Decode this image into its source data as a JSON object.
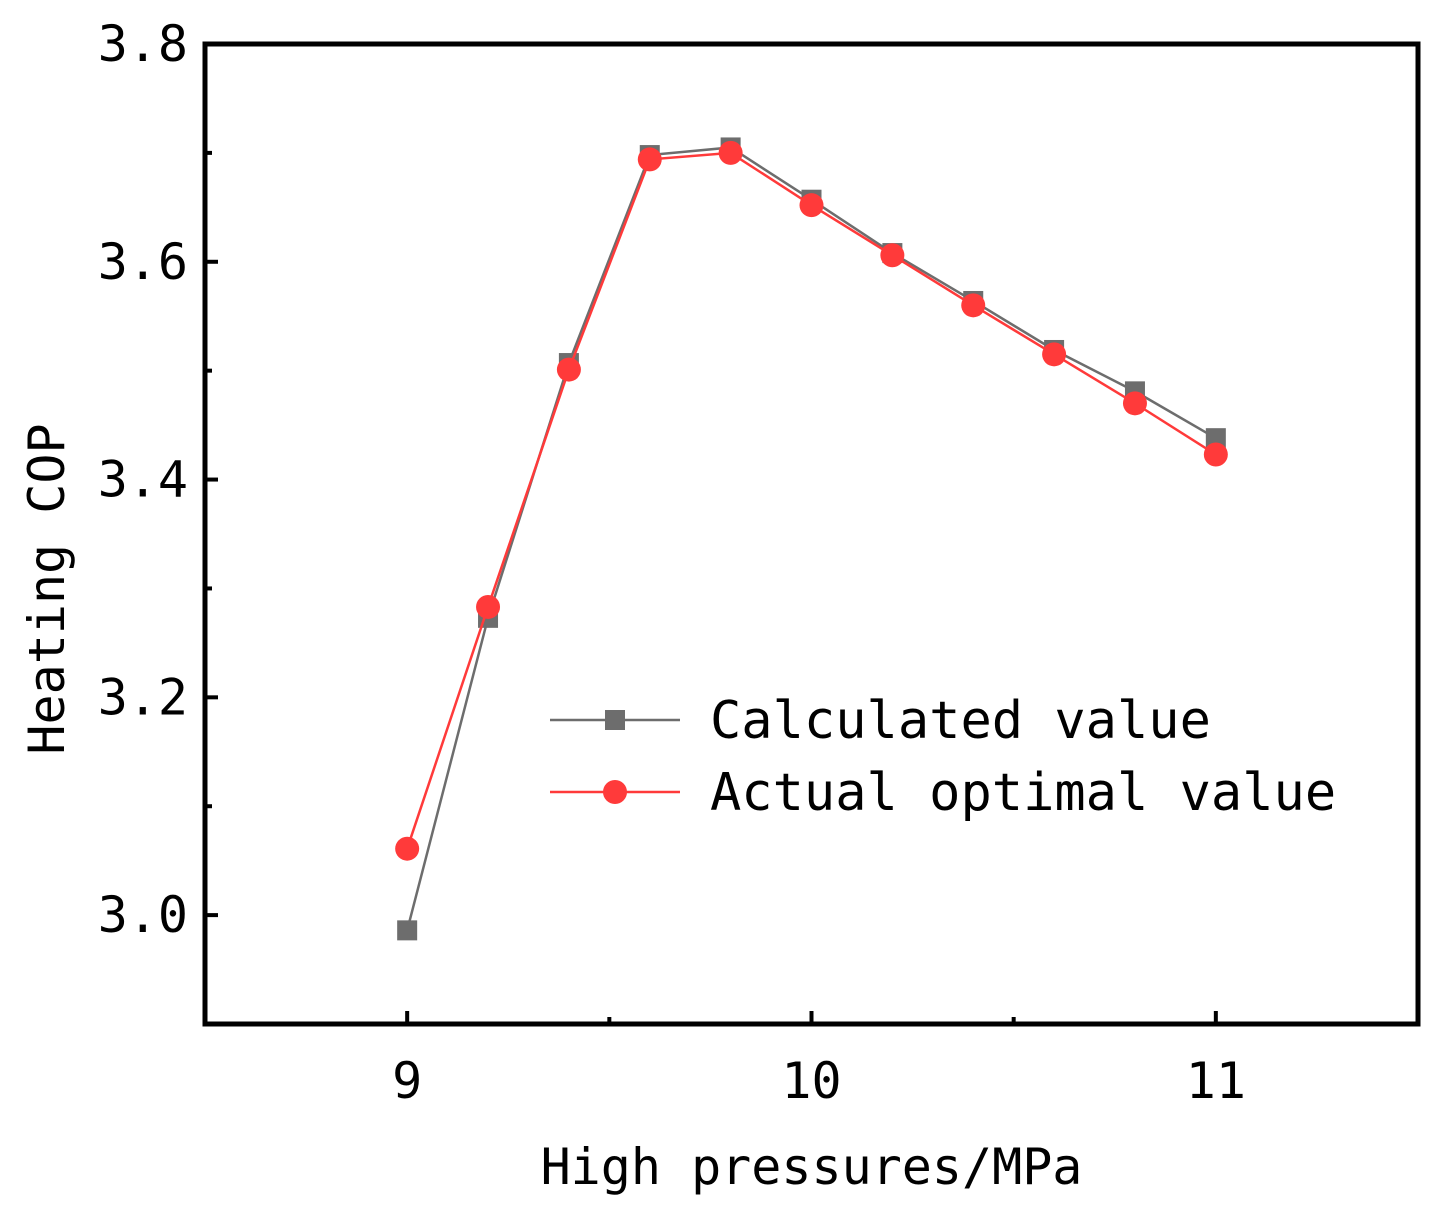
{
  "chart_data": {
    "type": "line",
    "title": "",
    "xlabel": "High pressures/MPa",
    "ylabel": "Heating COP",
    "xlim": [
      8.5,
      11.5
    ],
    "ylim": [
      2.9,
      3.8
    ],
    "xticks": [
      9,
      10,
      11
    ],
    "xtick_labels": [
      "9",
      "10",
      "11"
    ],
    "x_minor_ticks": [
      9.5,
      10.5
    ],
    "yticks": [
      3.0,
      3.2,
      3.4,
      3.6,
      3.8
    ],
    "ytick_labels": [
      "3.0",
      "3.2",
      "3.4",
      "3.6",
      "3.8"
    ],
    "y_minor_ticks": [
      3.1,
      3.3,
      3.5,
      3.7
    ],
    "grid": false,
    "legend_position": "center-right",
    "x": [
      9.0,
      9.2,
      9.4,
      9.6,
      9.8,
      10.0,
      10.2,
      10.4,
      10.6,
      10.8,
      11.0
    ],
    "series": [
      {
        "name": "Calculated value",
        "marker": "square",
        "color": "#6d6d6d",
        "values": [
          2.986,
          3.273,
          3.507,
          3.698,
          3.705,
          3.657,
          3.608,
          3.564,
          3.519,
          3.481,
          3.438
        ]
      },
      {
        "name": "Actual optimal value",
        "marker": "circle",
        "color": "#ff3a3a",
        "values": [
          3.061,
          3.283,
          3.501,
          3.694,
          3.7,
          3.652,
          3.606,
          3.56,
          3.515,
          3.47,
          3.423
        ]
      }
    ]
  }
}
